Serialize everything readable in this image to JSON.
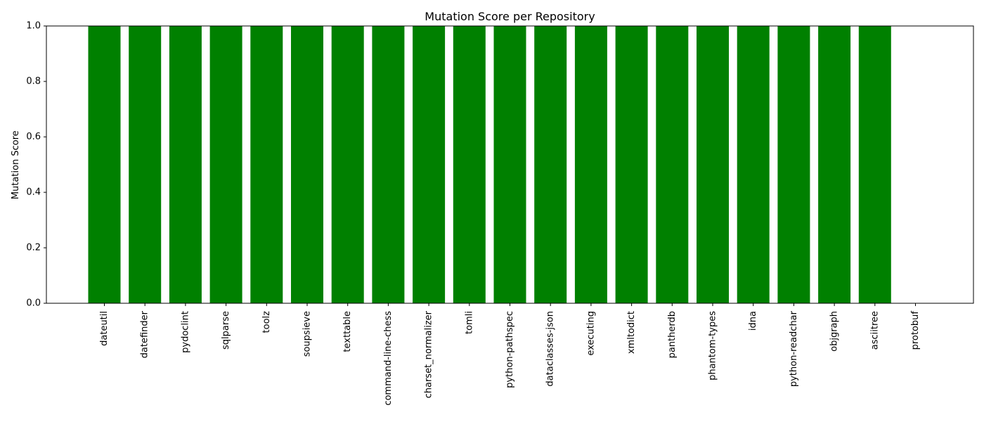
{
  "chart_data": {
    "type": "bar",
    "title": "Mutation Score per Repository",
    "xlabel": "",
    "ylabel": "Mutation Score",
    "ylim": [
      0,
      1
    ],
    "yticks": [
      "0.0",
      "0.2",
      "0.4",
      "0.6",
      "0.8",
      "1.0"
    ],
    "grid": false,
    "categories": [
      "dateutil",
      "datefinder",
      "pydoclint",
      "sqlparse",
      "toolz",
      "soupsieve",
      "texttable",
      "command-line-chess",
      "charset_normalizer",
      "tomli",
      "python-pathspec",
      "dataclasses-json",
      "executing",
      "xmltodict",
      "pantherdb",
      "phantom-types",
      "idna",
      "python-readchar",
      "objgraph",
      "asciitree",
      "protobuf"
    ],
    "values": [
      1.0,
      1.0,
      1.0,
      1.0,
      1.0,
      1.0,
      1.0,
      1.0,
      1.0,
      1.0,
      1.0,
      1.0,
      1.0,
      1.0,
      1.0,
      1.0,
      1.0,
      1.0,
      1.0,
      1.0,
      0.0
    ],
    "bar_color": "#008000"
  }
}
